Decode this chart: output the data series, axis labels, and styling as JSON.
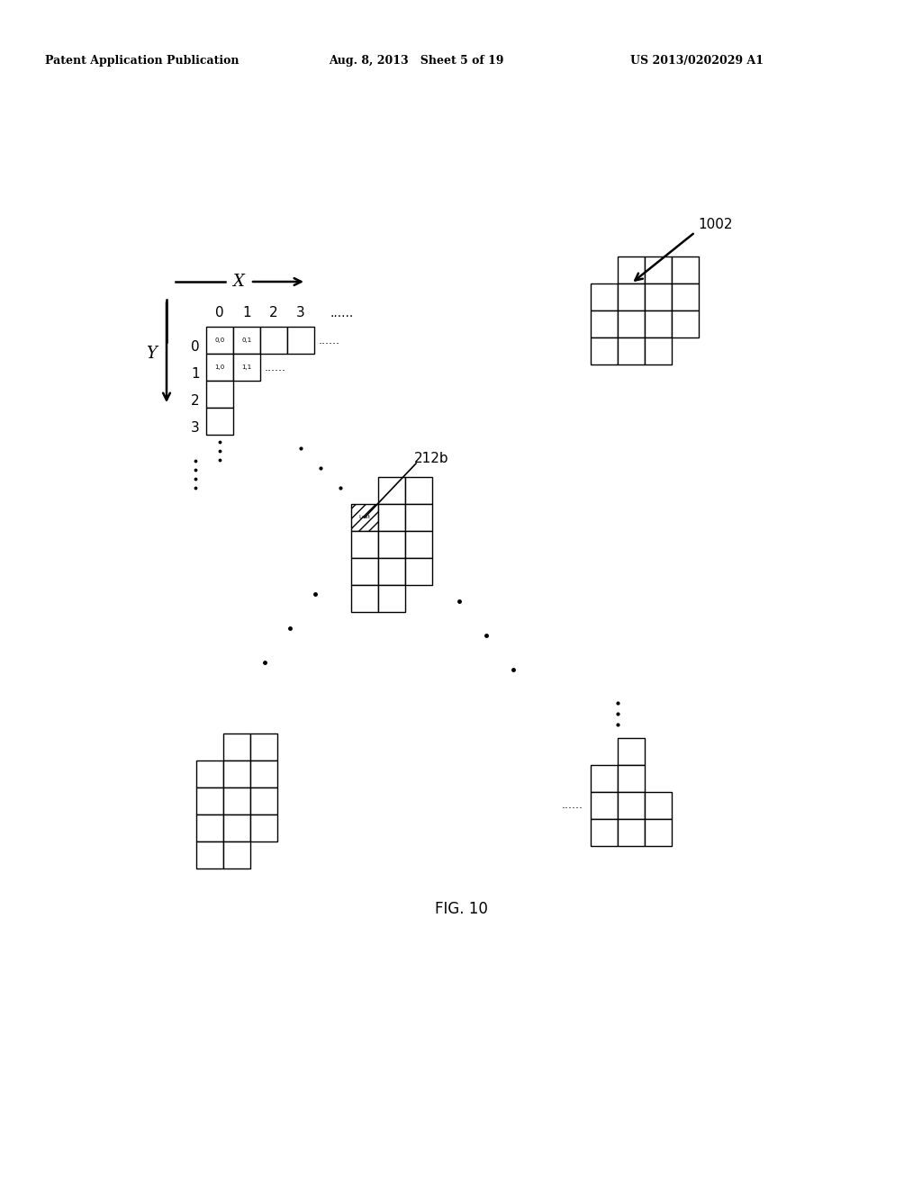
{
  "header_left": "Patent Application Publication",
  "header_mid": "Aug. 8, 2013   Sheet 5 of 19",
  "header_right": "US 2013/0202029 A1",
  "bg_color": "#ffffff",
  "label_1002": "1002",
  "label_212b": "212b",
  "title": "FIG. 10",
  "cell": 30
}
